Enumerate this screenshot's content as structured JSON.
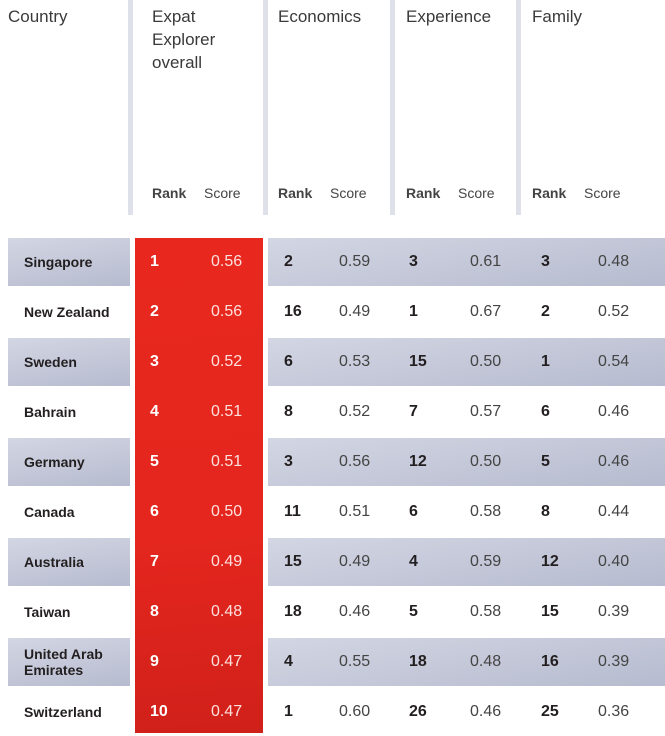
{
  "headers": {
    "country": "Country",
    "groups": [
      "Expat Explorer overall",
      "Economics",
      "Experience",
      "Family"
    ],
    "rank": "Rank",
    "score": "Score"
  },
  "colors": {
    "highlight": "#e4261e",
    "band": "#c5c9da"
  },
  "rows": [
    {
      "country": "Singapore",
      "overall": [
        "1",
        "0.56"
      ],
      "economics": [
        "2",
        "0.59"
      ],
      "experience": [
        "3",
        "0.61"
      ],
      "family": [
        "3",
        "0.48"
      ]
    },
    {
      "country": "New Zealand",
      "overall": [
        "2",
        "0.56"
      ],
      "economics": [
        "16",
        "0.49"
      ],
      "experience": [
        "1",
        "0.67"
      ],
      "family": [
        "2",
        "0.52"
      ]
    },
    {
      "country": "Sweden",
      "overall": [
        "3",
        "0.52"
      ],
      "economics": [
        "6",
        "0.53"
      ],
      "experience": [
        "15",
        "0.50"
      ],
      "family": [
        "1",
        "0.54"
      ]
    },
    {
      "country": "Bahrain",
      "overall": [
        "4",
        "0.51"
      ],
      "economics": [
        "8",
        "0.52"
      ],
      "experience": [
        "7",
        "0.57"
      ],
      "family": [
        "6",
        "0.46"
      ]
    },
    {
      "country": "Germany",
      "overall": [
        "5",
        "0.51"
      ],
      "economics": [
        "3",
        "0.56"
      ],
      "experience": [
        "12",
        "0.50"
      ],
      "family": [
        "5",
        "0.46"
      ]
    },
    {
      "country": "Canada",
      "overall": [
        "6",
        "0.50"
      ],
      "economics": [
        "11",
        "0.51"
      ],
      "experience": [
        "6",
        "0.58"
      ],
      "family": [
        "8",
        "0.44"
      ]
    },
    {
      "country": "Australia",
      "overall": [
        "7",
        "0.49"
      ],
      "economics": [
        "15",
        "0.49"
      ],
      "experience": [
        "4",
        "0.59"
      ],
      "family": [
        "12",
        "0.40"
      ]
    },
    {
      "country": "Taiwan",
      "overall": [
        "8",
        "0.48"
      ],
      "economics": [
        "18",
        "0.46"
      ],
      "experience": [
        "5",
        "0.58"
      ],
      "family": [
        "15",
        "0.39"
      ]
    },
    {
      "country": "United Arab Emirates",
      "overall": [
        "9",
        "0.47"
      ],
      "economics": [
        "4",
        "0.55"
      ],
      "experience": [
        "18",
        "0.48"
      ],
      "family": [
        "16",
        "0.39"
      ]
    },
    {
      "country": "Switzerland",
      "overall": [
        "10",
        "0.47"
      ],
      "economics": [
        "1",
        "0.60"
      ],
      "experience": [
        "26",
        "0.46"
      ],
      "family": [
        "25",
        "0.36"
      ]
    }
  ]
}
